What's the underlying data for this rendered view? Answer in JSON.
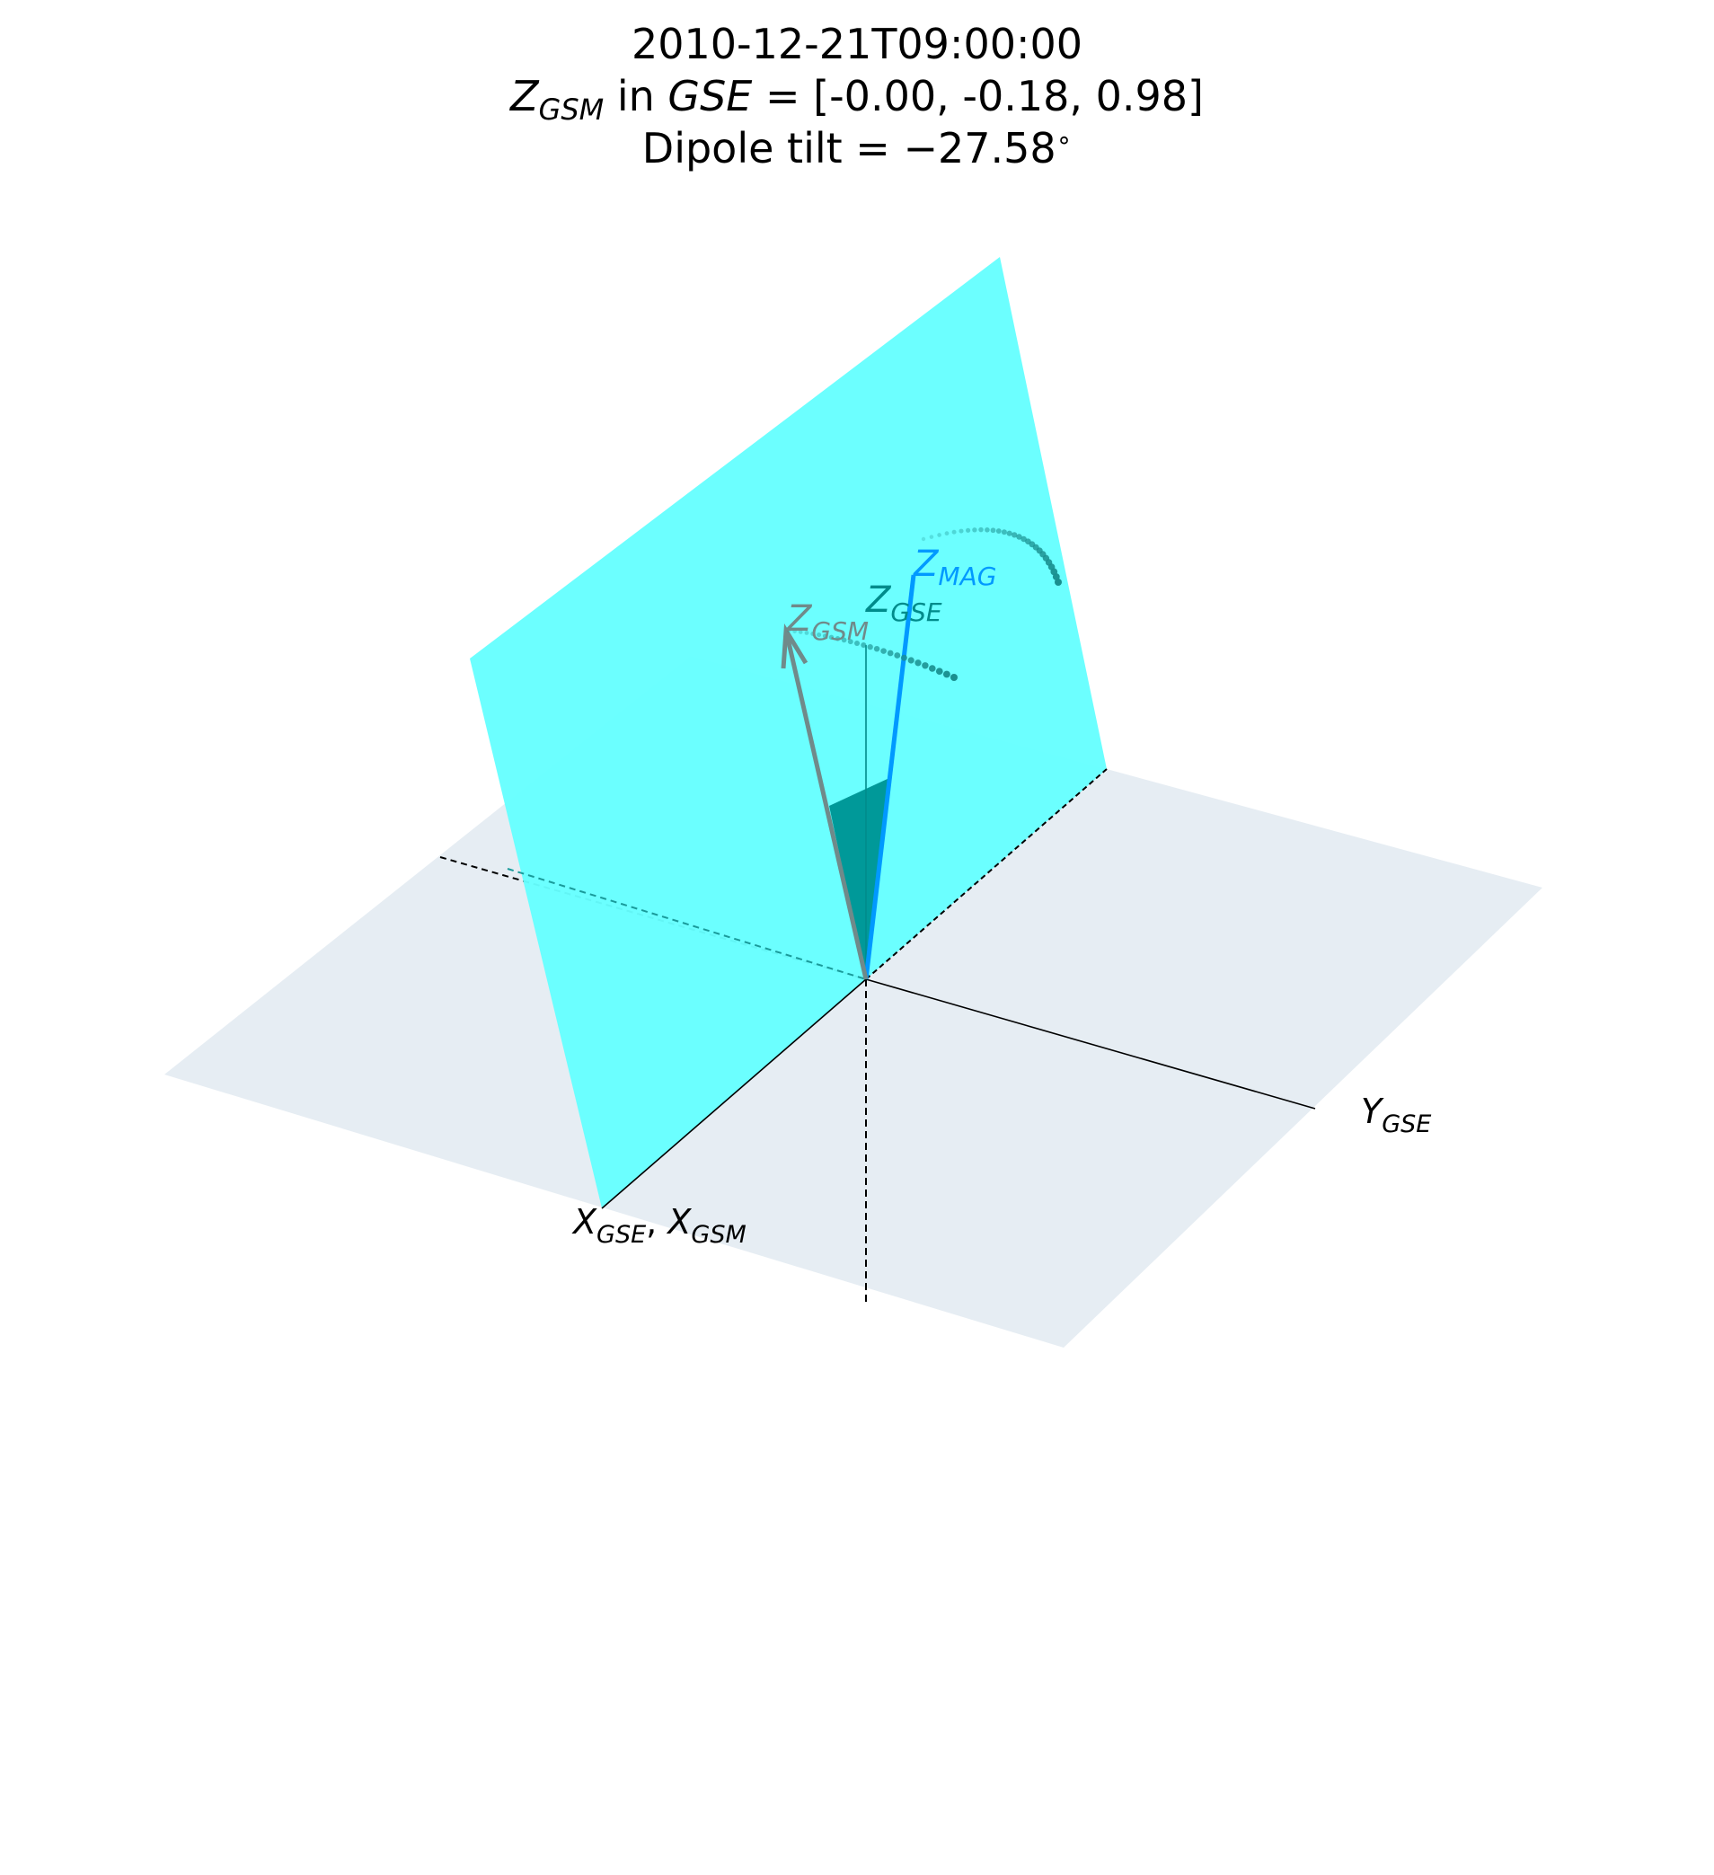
{
  "title": {
    "timestamp": "2010-12-21T09:00:00",
    "zgsm_main": "Z",
    "zgsm_sub": "GSM",
    "in_word": " in ",
    "gse_word": "GSE",
    "vector_text": " = [-0.00, -0.18, 0.98]",
    "dipole_tilt": "Dipole tilt = −27.58",
    "degree_symbol": "∘"
  },
  "labels": {
    "z_mag": {
      "main": "Z",
      "sub": "MAG"
    },
    "z_gse": {
      "main": "Z",
      "sub": "GSE"
    },
    "z_gsm": {
      "main": "Z",
      "sub": "GSM"
    },
    "y_gse": {
      "main": "Y",
      "sub": "GSE"
    },
    "x_gse": {
      "main": "X",
      "sub": "GSE"
    },
    "x_sep": ", ",
    "x_gsm": {
      "main": "X",
      "sub": "GSM"
    }
  },
  "colors": {
    "ground_plane": "#e6edf3",
    "gsm_plane": "#66ffff",
    "gsm_plane_overlap": "#5ffafa",
    "tilt_wedge": "#009999",
    "z_mag_vector": "#0099ff",
    "z_gsm_vector": "#708a8a",
    "z_gse_vector": "#008b8b",
    "trail_dots": "#1a8f8f",
    "axis_line": "#000000"
  },
  "vectors": {
    "z_gsm_in_gse": [
      -0.0,
      -0.18,
      0.98
    ],
    "dipole_tilt_deg": -27.58
  }
}
